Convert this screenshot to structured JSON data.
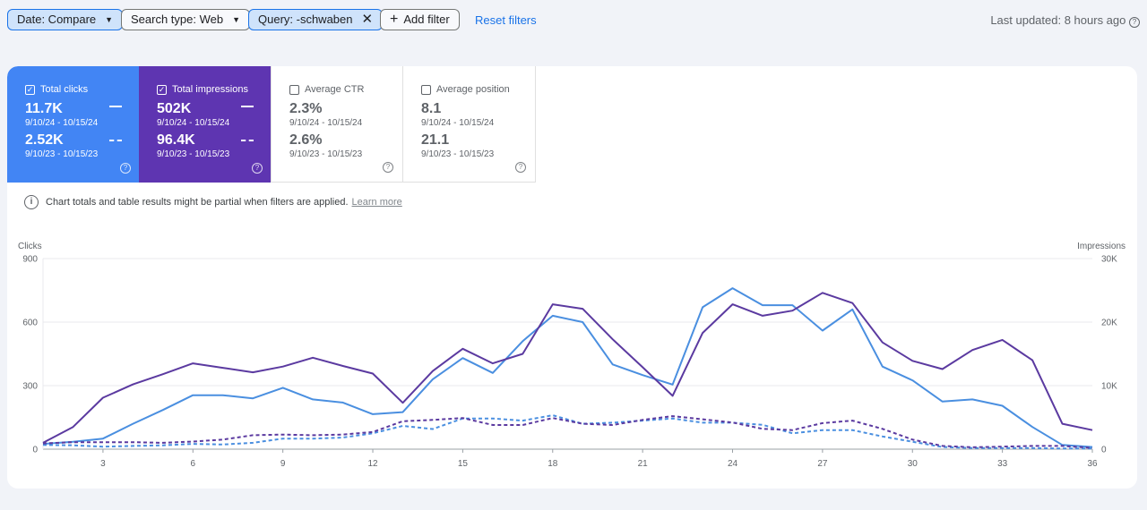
{
  "filters": {
    "date_label": "Date: Compare",
    "search_type_label": "Search type: Web",
    "query_label": "Query: -schwaben",
    "add_filter_label": "Add filter",
    "reset_label": "Reset filters"
  },
  "last_updated": "Last updated: 8 hours ago",
  "metrics": {
    "clicks": {
      "label": "Total clicks",
      "current": "11.7K",
      "current_range": "9/10/24 - 10/15/24",
      "previous": "2.52K",
      "previous_range": "9/10/23 - 10/15/23"
    },
    "impressions": {
      "label": "Total impressions",
      "current": "502K",
      "current_range": "9/10/24 - 10/15/24",
      "previous": "96.4K",
      "previous_range": "9/10/23 - 10/15/23"
    },
    "ctr": {
      "label": "Average CTR",
      "current": "2.3%",
      "current_range": "9/10/24 - 10/15/24",
      "previous": "2.6%",
      "previous_range": "9/10/23 - 10/15/23"
    },
    "position": {
      "label": "Average position",
      "current": "8.1",
      "current_range": "9/10/24 - 10/15/24",
      "previous": "21.1",
      "previous_range": "9/10/23 - 10/15/23"
    }
  },
  "notice": {
    "text": "Chart totals and table results might be partial when filters are applied.",
    "link": "Learn more"
  },
  "colors": {
    "clicks": "#4a8fe0",
    "impressions": "#5b3aa0",
    "active_chip": "#cfe3fb",
    "link": "#1a73e8"
  },
  "chart_data": {
    "type": "line",
    "x": [
      1,
      2,
      3,
      4,
      5,
      6,
      7,
      8,
      9,
      10,
      11,
      12,
      13,
      14,
      15,
      16,
      17,
      18,
      19,
      20,
      21,
      22,
      23,
      24,
      25,
      26,
      27,
      28,
      29,
      30,
      31,
      32,
      33,
      34,
      35,
      36
    ],
    "xticks": [
      3,
      6,
      9,
      12,
      15,
      18,
      21,
      24,
      27,
      30,
      33,
      36
    ],
    "y_left": {
      "label": "Clicks",
      "ticks": [
        0,
        300,
        600,
        900
      ],
      "tick_labels": [
        "0",
        "300",
        "600",
        "900"
      ],
      "lim": [
        0,
        900
      ]
    },
    "y_right": {
      "label": "Impressions",
      "ticks": [
        0,
        10000,
        20000,
        30000
      ],
      "tick_labels": [
        "0",
        "10K",
        "20K",
        "30K"
      ],
      "lim": [
        0,
        30000
      ]
    },
    "grid": true,
    "series": [
      {
        "metric": "clicks",
        "axis": "left",
        "style": "solid",
        "color": "#4a8fe0",
        "values": [
          25,
          35,
          50,
          120,
          185,
          255,
          255,
          240,
          290,
          235,
          220,
          165,
          175,
          330,
          430,
          360,
          510,
          630,
          600,
          400,
          350,
          305,
          670,
          760,
          680,
          680,
          560,
          660,
          390,
          325,
          225,
          235,
          205,
          105,
          20,
          10
        ]
      },
      {
        "metric": "impressions",
        "axis": "right",
        "style": "solid",
        "color": "#5b3aa0",
        "values": [
          1000,
          3500,
          8100,
          10200,
          11800,
          13500,
          12800,
          12100,
          13000,
          14400,
          13100,
          11900,
          7300,
          12300,
          15800,
          13500,
          15000,
          22800,
          22100,
          17300,
          12900,
          8400,
          18300,
          22800,
          21000,
          21800,
          24600,
          23000,
          16800,
          13900,
          12600,
          15600,
          17200,
          14000,
          4000,
          3000
        ]
      },
      {
        "metric": "clicks",
        "axis": "left",
        "style": "dashed",
        "color": "#4a8fe0",
        "values": [
          20,
          18,
          12,
          15,
          18,
          25,
          22,
          30,
          50,
          50,
          55,
          75,
          110,
          95,
          145,
          145,
          135,
          160,
          120,
          125,
          135,
          145,
          125,
          125,
          115,
          75,
          90,
          90,
          60,
          35,
          10,
          5,
          5,
          5,
          3,
          3
        ]
      },
      {
        "metric": "impressions",
        "axis": "right",
        "style": "dashed",
        "color": "#5b3aa0",
        "values": [
          900,
          1100,
          1100,
          1100,
          1000,
          1200,
          1500,
          2200,
          2300,
          2200,
          2300,
          2700,
          4400,
          4600,
          4900,
          3800,
          3800,
          4900,
          4000,
          3800,
          4600,
          5200,
          4700,
          4200,
          3200,
          3000,
          4100,
          4500,
          3200,
          1500,
          500,
          300,
          400,
          500,
          500,
          200
        ]
      }
    ]
  }
}
